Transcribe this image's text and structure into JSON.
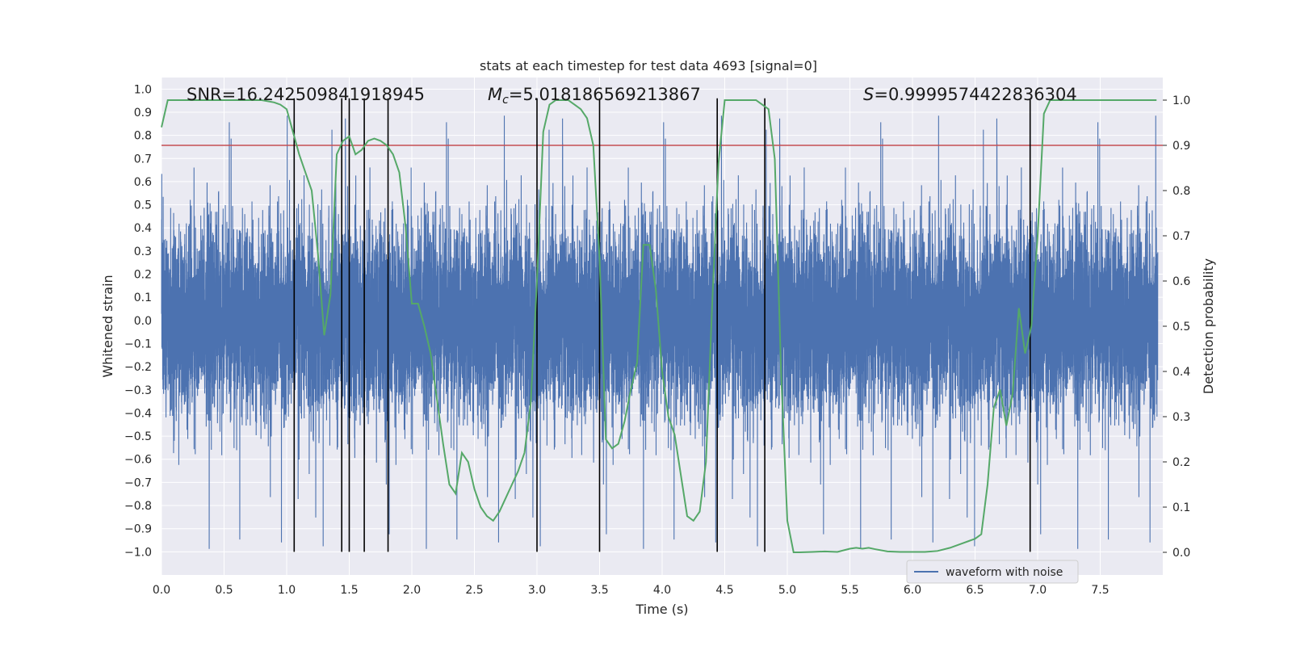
{
  "chart_data": {
    "type": "line",
    "title": "stats at each timestep for test data 4693 [signal=0]",
    "xlabel": "Time (s)",
    "ylabel": "Whitened strain",
    "ylabel_right": "Detection probability",
    "xlim": [
      0.0,
      8.0
    ],
    "ylim": [
      -1.1,
      1.05
    ],
    "ylim_right": [
      -0.05,
      1.05
    ],
    "x_ticks": [
      0.0,
      0.5,
      1.0,
      1.5,
      2.0,
      2.5,
      3.0,
      3.5,
      4.0,
      4.5,
      5.0,
      5.5,
      6.0,
      6.5,
      7.0,
      7.5
    ],
    "x_tick_labels": [
      "0.0",
      "0.5",
      "1.0",
      "1.5",
      "2.0",
      "2.5",
      "3.0",
      "3.5",
      "4.0",
      "4.5",
      "5.0",
      "5.5",
      "6.0",
      "6.5",
      "7.0",
      "7.5"
    ],
    "y_ticks": [
      1.0,
      0.9,
      0.8,
      0.7,
      0.6,
      0.5,
      0.4,
      0.3,
      0.2,
      0.1,
      0.0,
      -0.1,
      -0.2,
      -0.3,
      -0.4,
      -0.5,
      -0.6,
      -0.7,
      -0.8,
      -0.9,
      -1.0
    ],
    "y_tick_labels": [
      "1.0",
      "0.9",
      "0.8",
      "0.7",
      "0.6",
      "0.5",
      "0.4",
      "0.3",
      "0.2",
      "0.1",
      "0.0",
      "−0.1",
      "−0.2",
      "−0.3",
      "−0.4",
      "−0.5",
      "−0.6",
      "−0.7",
      "−0.8",
      "−0.9",
      "−1.0"
    ],
    "y_right_ticks": [
      1.0,
      0.9,
      0.8,
      0.7,
      0.6,
      0.5,
      0.4,
      0.3,
      0.2,
      0.1,
      0.0
    ],
    "y_right_tick_labels": [
      "1.0",
      "0.9",
      "0.8",
      "0.7",
      "0.6",
      "0.5",
      "0.4",
      "0.3",
      "0.2",
      "0.1",
      "0.0"
    ],
    "annotations": {
      "snr": "SNR=16.242509841918945",
      "mc_symbol": "M",
      "mc_sub": "c",
      "mc_value": "=5.018186569213867",
      "s_symbol": "S",
      "s_value": "=0.9999574422836304"
    },
    "legend": {
      "label": "waveform with noise",
      "location": "lower right"
    },
    "threshold": {
      "value": 0.9,
      "axis": "right",
      "color": "#c44e52"
    },
    "vertical_lines": [
      1.06,
      1.44,
      1.5,
      1.62,
      1.81,
      3.0,
      3.5,
      4.44,
      4.82,
      6.94
    ],
    "vertical_line_range": [
      -1.0,
      0.96
    ],
    "detection_probability": {
      "color": "#55a868",
      "x": [
        0.0,
        0.05,
        0.1,
        0.2,
        0.4,
        0.6,
        0.8,
        0.9,
        0.95,
        1.0,
        1.05,
        1.1,
        1.15,
        1.2,
        1.25,
        1.3,
        1.35,
        1.4,
        1.45,
        1.5,
        1.55,
        1.6,
        1.65,
        1.7,
        1.75,
        1.8,
        1.85,
        1.9,
        1.95,
        2.0,
        2.05,
        2.1,
        2.15,
        2.2,
        2.25,
        2.3,
        2.35,
        2.4,
        2.45,
        2.5,
        2.55,
        2.6,
        2.65,
        2.7,
        2.75,
        2.8,
        2.85,
        2.9,
        2.95,
        3.0,
        3.05,
        3.1,
        3.15,
        3.2,
        3.25,
        3.3,
        3.35,
        3.4,
        3.45,
        3.5,
        3.55,
        3.6,
        3.65,
        3.7,
        3.75,
        3.8,
        3.85,
        3.9,
        3.95,
        4.0,
        4.05,
        4.1,
        4.15,
        4.2,
        4.25,
        4.3,
        4.35,
        4.4,
        4.45,
        4.5,
        4.55,
        4.6,
        4.65,
        4.7,
        4.75,
        4.8,
        4.85,
        4.9,
        4.95,
        5.0,
        5.05,
        5.1,
        5.2,
        5.3,
        5.4,
        5.5,
        5.55,
        5.6,
        5.65,
        5.7,
        5.8,
        5.9,
        6.0,
        6.1,
        6.2,
        6.3,
        6.4,
        6.45,
        6.5,
        6.55,
        6.6,
        6.65,
        6.7,
        6.75,
        6.8,
        6.85,
        6.9,
        6.95,
        7.0,
        7.05,
        7.1,
        7.2,
        7.4,
        7.6,
        7.8,
        7.95
      ],
      "y": [
        0.94,
        1.0,
        1.0,
        1.0,
        1.0,
        1.0,
        1.0,
        0.995,
        0.99,
        0.98,
        0.93,
        0.88,
        0.84,
        0.8,
        0.66,
        0.48,
        0.57,
        0.88,
        0.91,
        0.92,
        0.88,
        0.89,
        0.91,
        0.915,
        0.91,
        0.9,
        0.88,
        0.84,
        0.72,
        0.55,
        0.55,
        0.5,
        0.44,
        0.34,
        0.24,
        0.15,
        0.13,
        0.22,
        0.2,
        0.14,
        0.1,
        0.08,
        0.07,
        0.09,
        0.12,
        0.15,
        0.18,
        0.22,
        0.33,
        0.6,
        0.93,
        0.99,
        1.0,
        1.0,
        1.0,
        0.99,
        0.98,
        0.96,
        0.9,
        0.65,
        0.25,
        0.23,
        0.24,
        0.29,
        0.36,
        0.42,
        0.68,
        0.68,
        0.58,
        0.4,
        0.3,
        0.26,
        0.17,
        0.08,
        0.07,
        0.09,
        0.2,
        0.55,
        0.86,
        1.0,
        1.0,
        1.0,
        1.0,
        1.0,
        1.0,
        0.99,
        0.98,
        0.87,
        0.4,
        0.07,
        0.0,
        0.0,
        0.001,
        0.002,
        0.001,
        0.008,
        0.01,
        0.008,
        0.01,
        0.007,
        0.002,
        0.001,
        0.001,
        0.001,
        0.003,
        0.01,
        0.02,
        0.025,
        0.03,
        0.04,
        0.15,
        0.32,
        0.36,
        0.28,
        0.35,
        0.54,
        0.44,
        0.5,
        0.7,
        0.97,
        1.0,
        1.0,
        1.0,
        1.0,
        1.0,
        1.0
      ]
    },
    "series": [
      {
        "name": "waveform with noise",
        "color": "#4c72b0",
        "description": "whitened strain noise, 8 s at ~2048 samples/s",
        "x_range": [
          0.0,
          7.96
        ],
        "typical_amplitude": 0.3,
        "peak_positive": 0.94,
        "peak_negative": -0.99
      }
    ]
  }
}
